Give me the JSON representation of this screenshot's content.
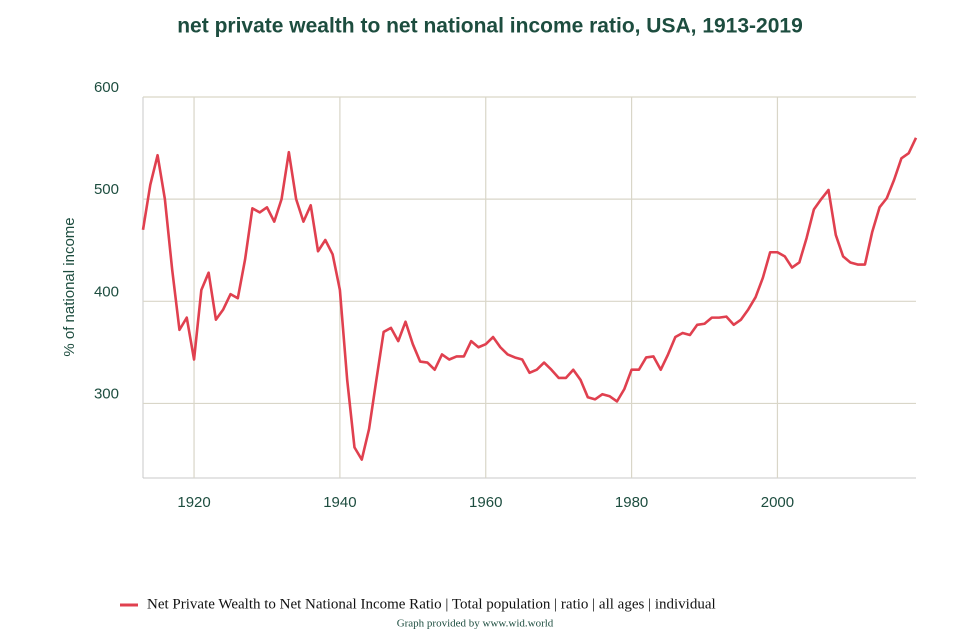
{
  "chart_data": {
    "type": "line",
    "title": "net private wealth to net national income ratio, USA, 1913-2019",
    "y_label": "% of national income",
    "x": [
      1913,
      1914,
      1915,
      1916,
      1917,
      1918,
      1919,
      1920,
      1921,
      1922,
      1923,
      1924,
      1925,
      1926,
      1927,
      1928,
      1929,
      1930,
      1931,
      1932,
      1933,
      1934,
      1935,
      1936,
      1937,
      1938,
      1939,
      1940,
      1941,
      1942,
      1943,
      1944,
      1945,
      1946,
      1947,
      1948,
      1949,
      1950,
      1951,
      1952,
      1953,
      1954,
      1955,
      1956,
      1957,
      1958,
      1959,
      1960,
      1961,
      1962,
      1963,
      1964,
      1965,
      1966,
      1967,
      1968,
      1969,
      1970,
      1971,
      1972,
      1973,
      1974,
      1975,
      1976,
      1977,
      1978,
      1979,
      1980,
      1981,
      1982,
      1983,
      1984,
      1985,
      1986,
      1987,
      1988,
      1989,
      1990,
      1991,
      1992,
      1993,
      1994,
      1995,
      1996,
      1997,
      1998,
      1999,
      2000,
      2001,
      2002,
      2003,
      2004,
      2005,
      2006,
      2007,
      2008,
      2009,
      2010,
      2011,
      2012,
      2013,
      2014,
      2015,
      2016,
      2017,
      2018,
      2019
    ],
    "series": [
      {
        "name": "Net Private Wealth to Net National Income Ratio | Total population | ratio | all ages | individual",
        "color": "#e0404f",
        "values": [
          470,
          514,
          543,
          500,
          431,
          372,
          384,
          343,
          411,
          428,
          382,
          392,
          407,
          403,
          441,
          491,
          487,
          492,
          478,
          500,
          546,
          500,
          478,
          494,
          449,
          460,
          446,
          411,
          323,
          257,
          245,
          275,
          323,
          370,
          374,
          361,
          380,
          358,
          341,
          340,
          333,
          348,
          343,
          346,
          346,
          361,
          355,
          358,
          365,
          355,
          348,
          345,
          343,
          330,
          333,
          340,
          333,
          325,
          325,
          333,
          323,
          306,
          304,
          309,
          307,
          302,
          314,
          333,
          333,
          345,
          346,
          333,
          348,
          365,
          369,
          367,
          377,
          378,
          384,
          384,
          385,
          377,
          382,
          392,
          404,
          423,
          448,
          448,
          444,
          433,
          438,
          462,
          490,
          500,
          509,
          465,
          444,
          438,
          436,
          436,
          468,
          492,
          501,
          519,
          540,
          545,
          560
        ]
      }
    ],
    "xlim": [
      1913,
      2019
    ],
    "xticks": [
      1920,
      1940,
      1960,
      1980,
      2000
    ],
    "ylim": [
      227,
      600
    ],
    "yticks": [
      300,
      400,
      500,
      600
    ],
    "grid": true,
    "footer": "Graph provided by www.wid.world"
  }
}
